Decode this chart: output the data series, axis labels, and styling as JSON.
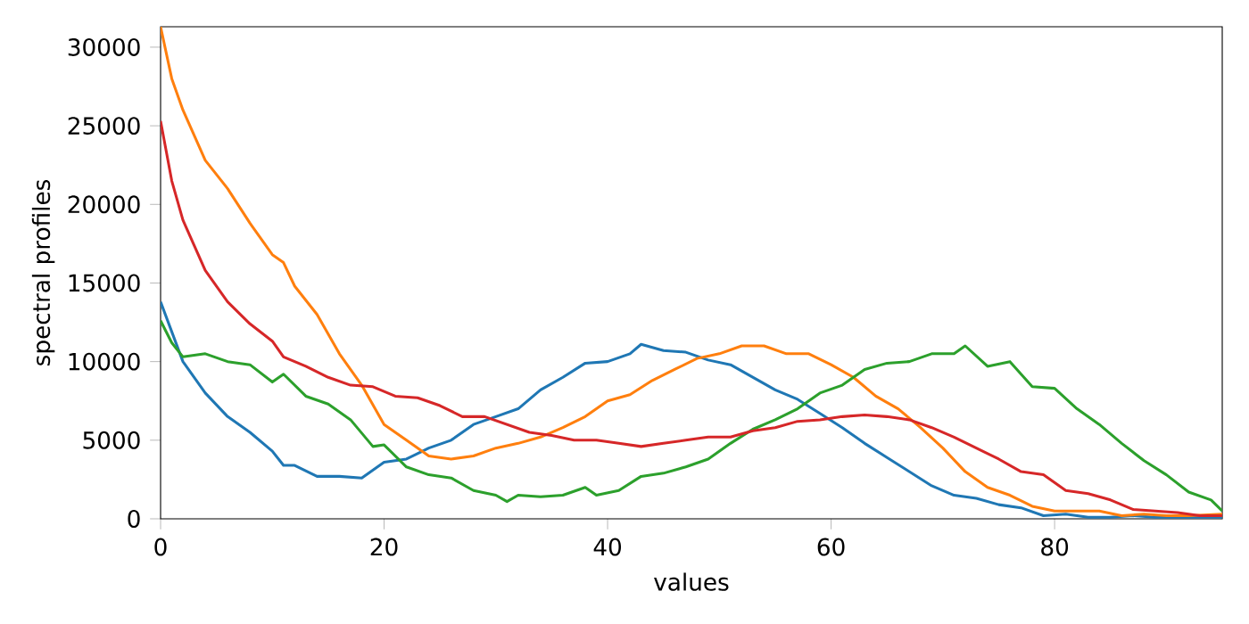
{
  "chart_data": {
    "type": "line",
    "xlabel": "values",
    "ylabel": "spectral profiles",
    "xlim": [
      0,
      95
    ],
    "ylim": [
      0,
      31300
    ],
    "xticks": [
      0,
      20,
      40,
      60,
      80
    ],
    "yticks": [
      0,
      5000,
      10000,
      15000,
      20000,
      25000,
      30000
    ],
    "grid": false,
    "series": [
      {
        "color": "#1f77b4",
        "x": [
          0,
          2,
          4,
          6,
          8,
          10,
          11,
          12,
          14,
          16,
          18,
          20,
          22,
          24,
          26,
          28,
          30,
          32,
          34,
          36,
          38,
          40,
          42,
          43,
          45,
          47,
          49,
          51,
          53,
          55,
          57,
          59,
          61,
          63,
          65,
          67,
          69,
          71,
          73,
          75,
          77,
          79,
          81,
          83,
          85,
          87,
          89,
          91,
          95
        ],
        "values": [
          13800,
          10000,
          8000,
          6500,
          5500,
          4300,
          3400,
          3400,
          2700,
          2700,
          2600,
          3600,
          3800,
          4500,
          5000,
          6000,
          6500,
          7000,
          8200,
          9000,
          9900,
          10000,
          10500,
          11100,
          10700,
          10600,
          10100,
          9800,
          9000,
          8200,
          7600,
          6700,
          5800,
          4800,
          3900,
          3000,
          2100,
          1500,
          1300,
          900,
          700,
          200,
          300,
          100,
          100,
          200,
          100,
          100,
          100
        ]
      },
      {
        "color": "#ff7f0e",
        "x": [
          0,
          1,
          2,
          4,
          6,
          8,
          10,
          11,
          12,
          14,
          16,
          18,
          20,
          22,
          24,
          26,
          28,
          30,
          32,
          34,
          36,
          38,
          40,
          42,
          44,
          46,
          48,
          50,
          52,
          54,
          56,
          58,
          60,
          62,
          64,
          66,
          68,
          70,
          72,
          74,
          76,
          78,
          80,
          82,
          84,
          86,
          88,
          90,
          92,
          95
        ],
        "values": [
          31300,
          28000,
          26000,
          22800,
          21000,
          18800,
          16800,
          16300,
          14800,
          13000,
          10500,
          8500,
          6000,
          5000,
          4000,
          3800,
          4000,
          4500,
          4800,
          5200,
          5800,
          6500,
          7500,
          7900,
          8800,
          9500,
          10200,
          10500,
          11000,
          11000,
          10500,
          10500,
          9800,
          9000,
          7800,
          7000,
          5800,
          4500,
          3000,
          2000,
          1500,
          800,
          500,
          500,
          500,
          200,
          300,
          200,
          200,
          300
        ]
      },
      {
        "color": "#2ca02c",
        "x": [
          0,
          1,
          2,
          4,
          6,
          8,
          10,
          11,
          13,
          15,
          17,
          19,
          20,
          22,
          24,
          26,
          28,
          30,
          31,
          32,
          34,
          36,
          38,
          39,
          41,
          43,
          45,
          47,
          49,
          51,
          53,
          55,
          57,
          59,
          61,
          63,
          65,
          67,
          69,
          71,
          72,
          74,
          76,
          78,
          80,
          82,
          84,
          86,
          88,
          90,
          92,
          94,
          95
        ],
        "values": [
          12600,
          11200,
          10300,
          10500,
          10000,
          9800,
          8700,
          9200,
          7800,
          7300,
          6300,
          4600,
          4700,
          3300,
          2800,
          2600,
          1800,
          1500,
          1100,
          1500,
          1400,
          1500,
          2000,
          1500,
          1800,
          2700,
          2900,
          3300,
          3800,
          4800,
          5700,
          6300,
          7000,
          8000,
          8500,
          9500,
          9900,
          10000,
          10500,
          10500,
          11000,
          9700,
          10000,
          8400,
          8300,
          7000,
          6000,
          4800,
          3700,
          2800,
          1700,
          1200,
          500
        ]
      },
      {
        "color": "#d62728",
        "x": [
          0,
          1,
          2,
          4,
          6,
          8,
          10,
          11,
          13,
          15,
          17,
          19,
          21,
          23,
          25,
          27,
          29,
          31,
          33,
          35,
          37,
          39,
          41,
          43,
          45,
          47,
          49,
          51,
          53,
          55,
          57,
          59,
          61,
          63,
          65,
          67,
          69,
          71,
          73,
          75,
          77,
          79,
          81,
          83,
          85,
          87,
          89,
          91,
          93,
          95
        ],
        "values": [
          25300,
          21500,
          19000,
          15800,
          13800,
          12400,
          11300,
          10300,
          9700,
          9000,
          8500,
          8400,
          7800,
          7700,
          7200,
          6500,
          6500,
          6000,
          5500,
          5300,
          5000,
          5000,
          4800,
          4600,
          4800,
          5000,
          5200,
          5200,
          5600,
          5800,
          6200,
          6300,
          6500,
          6600,
          6500,
          6300,
          5800,
          5200,
          4500,
          3800,
          3000,
          2800,
          1800,
          1600,
          1200,
          600,
          500,
          400,
          200,
          200
        ]
      }
    ]
  }
}
